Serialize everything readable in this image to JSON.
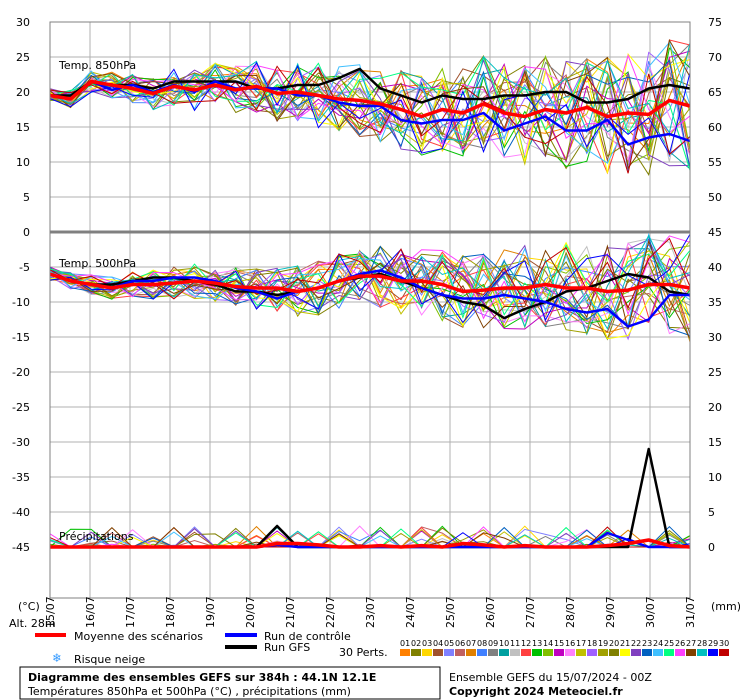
{
  "chart_data": {
    "type": "line",
    "x_dates": [
      "15/07",
      "16/07",
      "17/07",
      "18/07",
      "19/07",
      "20/07",
      "21/07",
      "22/07",
      "23/07",
      "24/07",
      "25/07",
      "26/07",
      "27/07",
      "28/07",
      "29/07",
      "30/07",
      "31/07"
    ],
    "left_ticks": [
      "30",
      "25",
      "20",
      "15",
      "10",
      "5",
      "0",
      "-5",
      "-10",
      "-15",
      "-20",
      "-25",
      "-30",
      "-35",
      "-40",
      "-45"
    ],
    "right_ticks": [
      "75",
      "70",
      "65",
      "60",
      "55",
      "50",
      "45",
      "40",
      "35",
      "30",
      "25",
      "20",
      "15",
      "10",
      "5",
      "0"
    ],
    "left_unit": "(°C)",
    "right_unit": "(mm)",
    "panels": {
      "t850_label": "Temp. 850hPa",
      "t500_label": "Temp. 500hPa",
      "precip_label": "Précipitations"
    },
    "series": [
      {
        "name": "Moyenne des scénarios",
        "color": "#ff0000",
        "t850": [
          19.5,
          19,
          21.5,
          21,
          20.5,
          19.8,
          20.8,
          20.3,
          21,
          20.3,
          20.8,
          19.8,
          20,
          19.5,
          19,
          18.8,
          18.3,
          17.5,
          16.5,
          17.5,
          17,
          18.3,
          17,
          16.5,
          17.5,
          17,
          17.8,
          16.5,
          17,
          16.8,
          18.8,
          18
        ],
        "t500": [
          -6,
          -7,
          -7.5,
          -8,
          -7.5,
          -7.5,
          -7.3,
          -7,
          -7.3,
          -7.8,
          -8,
          -8,
          -8.5,
          -8,
          -7,
          -6.3,
          -6.3,
          -7,
          -7,
          -7.5,
          -8.5,
          -8.3,
          -8,
          -8,
          -7.5,
          -8,
          -8,
          -8.5,
          -8.3,
          -7.5,
          -7.5,
          -8
        ],
        "precip": [
          0,
          0,
          0,
          0,
          0,
          0,
          0,
          0,
          0,
          0,
          0,
          0.5,
          0.5,
          0.3,
          0,
          0,
          0.2,
          0,
          0.2,
          0,
          0.5,
          0.3,
          0,
          0.2,
          0,
          0,
          0,
          0.2,
          0.5,
          1,
          0.2,
          0
        ]
      },
      {
        "name": "Run de contrôle",
        "color": "#0000ff",
        "t850": [
          19.5,
          19,
          21.5,
          20.3,
          21,
          20,
          21,
          20,
          21.5,
          20.5,
          20.5,
          20.5,
          19.5,
          19.5,
          18.5,
          18,
          18,
          16,
          15.5,
          16,
          16,
          17,
          14.5,
          15.5,
          16.5,
          14.5,
          14.5,
          16,
          12.5,
          13.5,
          14,
          13
        ],
        "t500": [
          -6,
          -7,
          -7.5,
          -8,
          -7,
          -7,
          -6.5,
          -6.5,
          -7,
          -8,
          -8.5,
          -9.5,
          -8.5,
          -8,
          -7,
          -6,
          -5.5,
          -6.5,
          -8,
          -9,
          -9.5,
          -9.5,
          -9,
          -9.5,
          -10,
          -11,
          -11.5,
          -11,
          -13.5,
          -12.5,
          -9,
          -9
        ],
        "precip": [
          0,
          0,
          0,
          0,
          0,
          0,
          0,
          0,
          0,
          0,
          0,
          0.3,
          0,
          0,
          0,
          0,
          0,
          0,
          0,
          0,
          0,
          0,
          0,
          0,
          0,
          0,
          0,
          2,
          1,
          0,
          0,
          0
        ]
      },
      {
        "name": "Run GFS",
        "color": "#000000",
        "t850": [
          19.5,
          19.5,
          21.5,
          21,
          21,
          20.5,
          21.5,
          21.5,
          21.5,
          21.5,
          20.5,
          20.5,
          21,
          21,
          22,
          23.3,
          20.5,
          19.5,
          18.5,
          19.5,
          19,
          19,
          19.5,
          19.5,
          20,
          20,
          18.5,
          18.5,
          19,
          20.5,
          21,
          20.5
        ],
        "t500": [
          -6,
          -7,
          -7.5,
          -7.5,
          -7,
          -6.5,
          -6.5,
          -7,
          -7.5,
          -8.5,
          -8.5,
          -9,
          -8.5,
          -8,
          -7,
          -6.5,
          -6,
          -7,
          -8,
          -9,
          -10,
          -10.5,
          -12.3,
          -11,
          -10,
          -8.5,
          -8,
          -7,
          -6,
          -6.5,
          -8.5,
          -9
        ],
        "precip": [
          0,
          0,
          0,
          0,
          0,
          0,
          0,
          0,
          0,
          0,
          0,
          3,
          0,
          0,
          0,
          0,
          0,
          0,
          0,
          0,
          0,
          0,
          0,
          0,
          0,
          0,
          0,
          0,
          0,
          14,
          0,
          0
        ]
      }
    ]
  },
  "legend": {
    "mean": "Moyenne des scénarios",
    "control": "Run de contrôle",
    "gfs": "Run GFS",
    "snow": "Risque neige",
    "perts": "30 Perts.",
    "alt": "Alt. 28m",
    "pert_numbers": [
      "01",
      "02",
      "03",
      "04",
      "05",
      "06",
      "07",
      "08",
      "09",
      "10",
      "11",
      "12",
      "13",
      "14",
      "15",
      "16",
      "17",
      "18",
      "19",
      "20",
      "21",
      "22",
      "23",
      "24",
      "25",
      "26",
      "27",
      "28",
      "29",
      "30"
    ],
    "pert_colors": [
      "#ff8000",
      "#808000",
      "#ffd700",
      "#a0522d",
      "#8080ff",
      "#c06060",
      "#e08000",
      "#4080ff",
      "#808080",
      "#00a0a0",
      "#c0c0c0",
      "#ff4040",
      "#00c000",
      "#80c000",
      "#c000c0",
      "#ff80ff",
      "#c0c000",
      "#a060ff",
      "#a0a000",
      "#808000",
      "#ffff00",
      "#8040c0",
      "#0060c0",
      "#40c0ff",
      "#00ff80",
      "#ff40ff",
      "#804000",
      "#00c0c0",
      "#0000ff",
      "#c00000"
    ]
  },
  "footer": {
    "title": "Diagramme des ensembles GEFS sur 384h : 44.1N 12.1E",
    "subtitle": "Températures 850hPa et 500hPa (°C) , précipitations (mm)",
    "run": "Ensemble GEFS du 15/07/2024 - 00Z",
    "copyright": "Copyright 2024 Meteociel.fr"
  }
}
